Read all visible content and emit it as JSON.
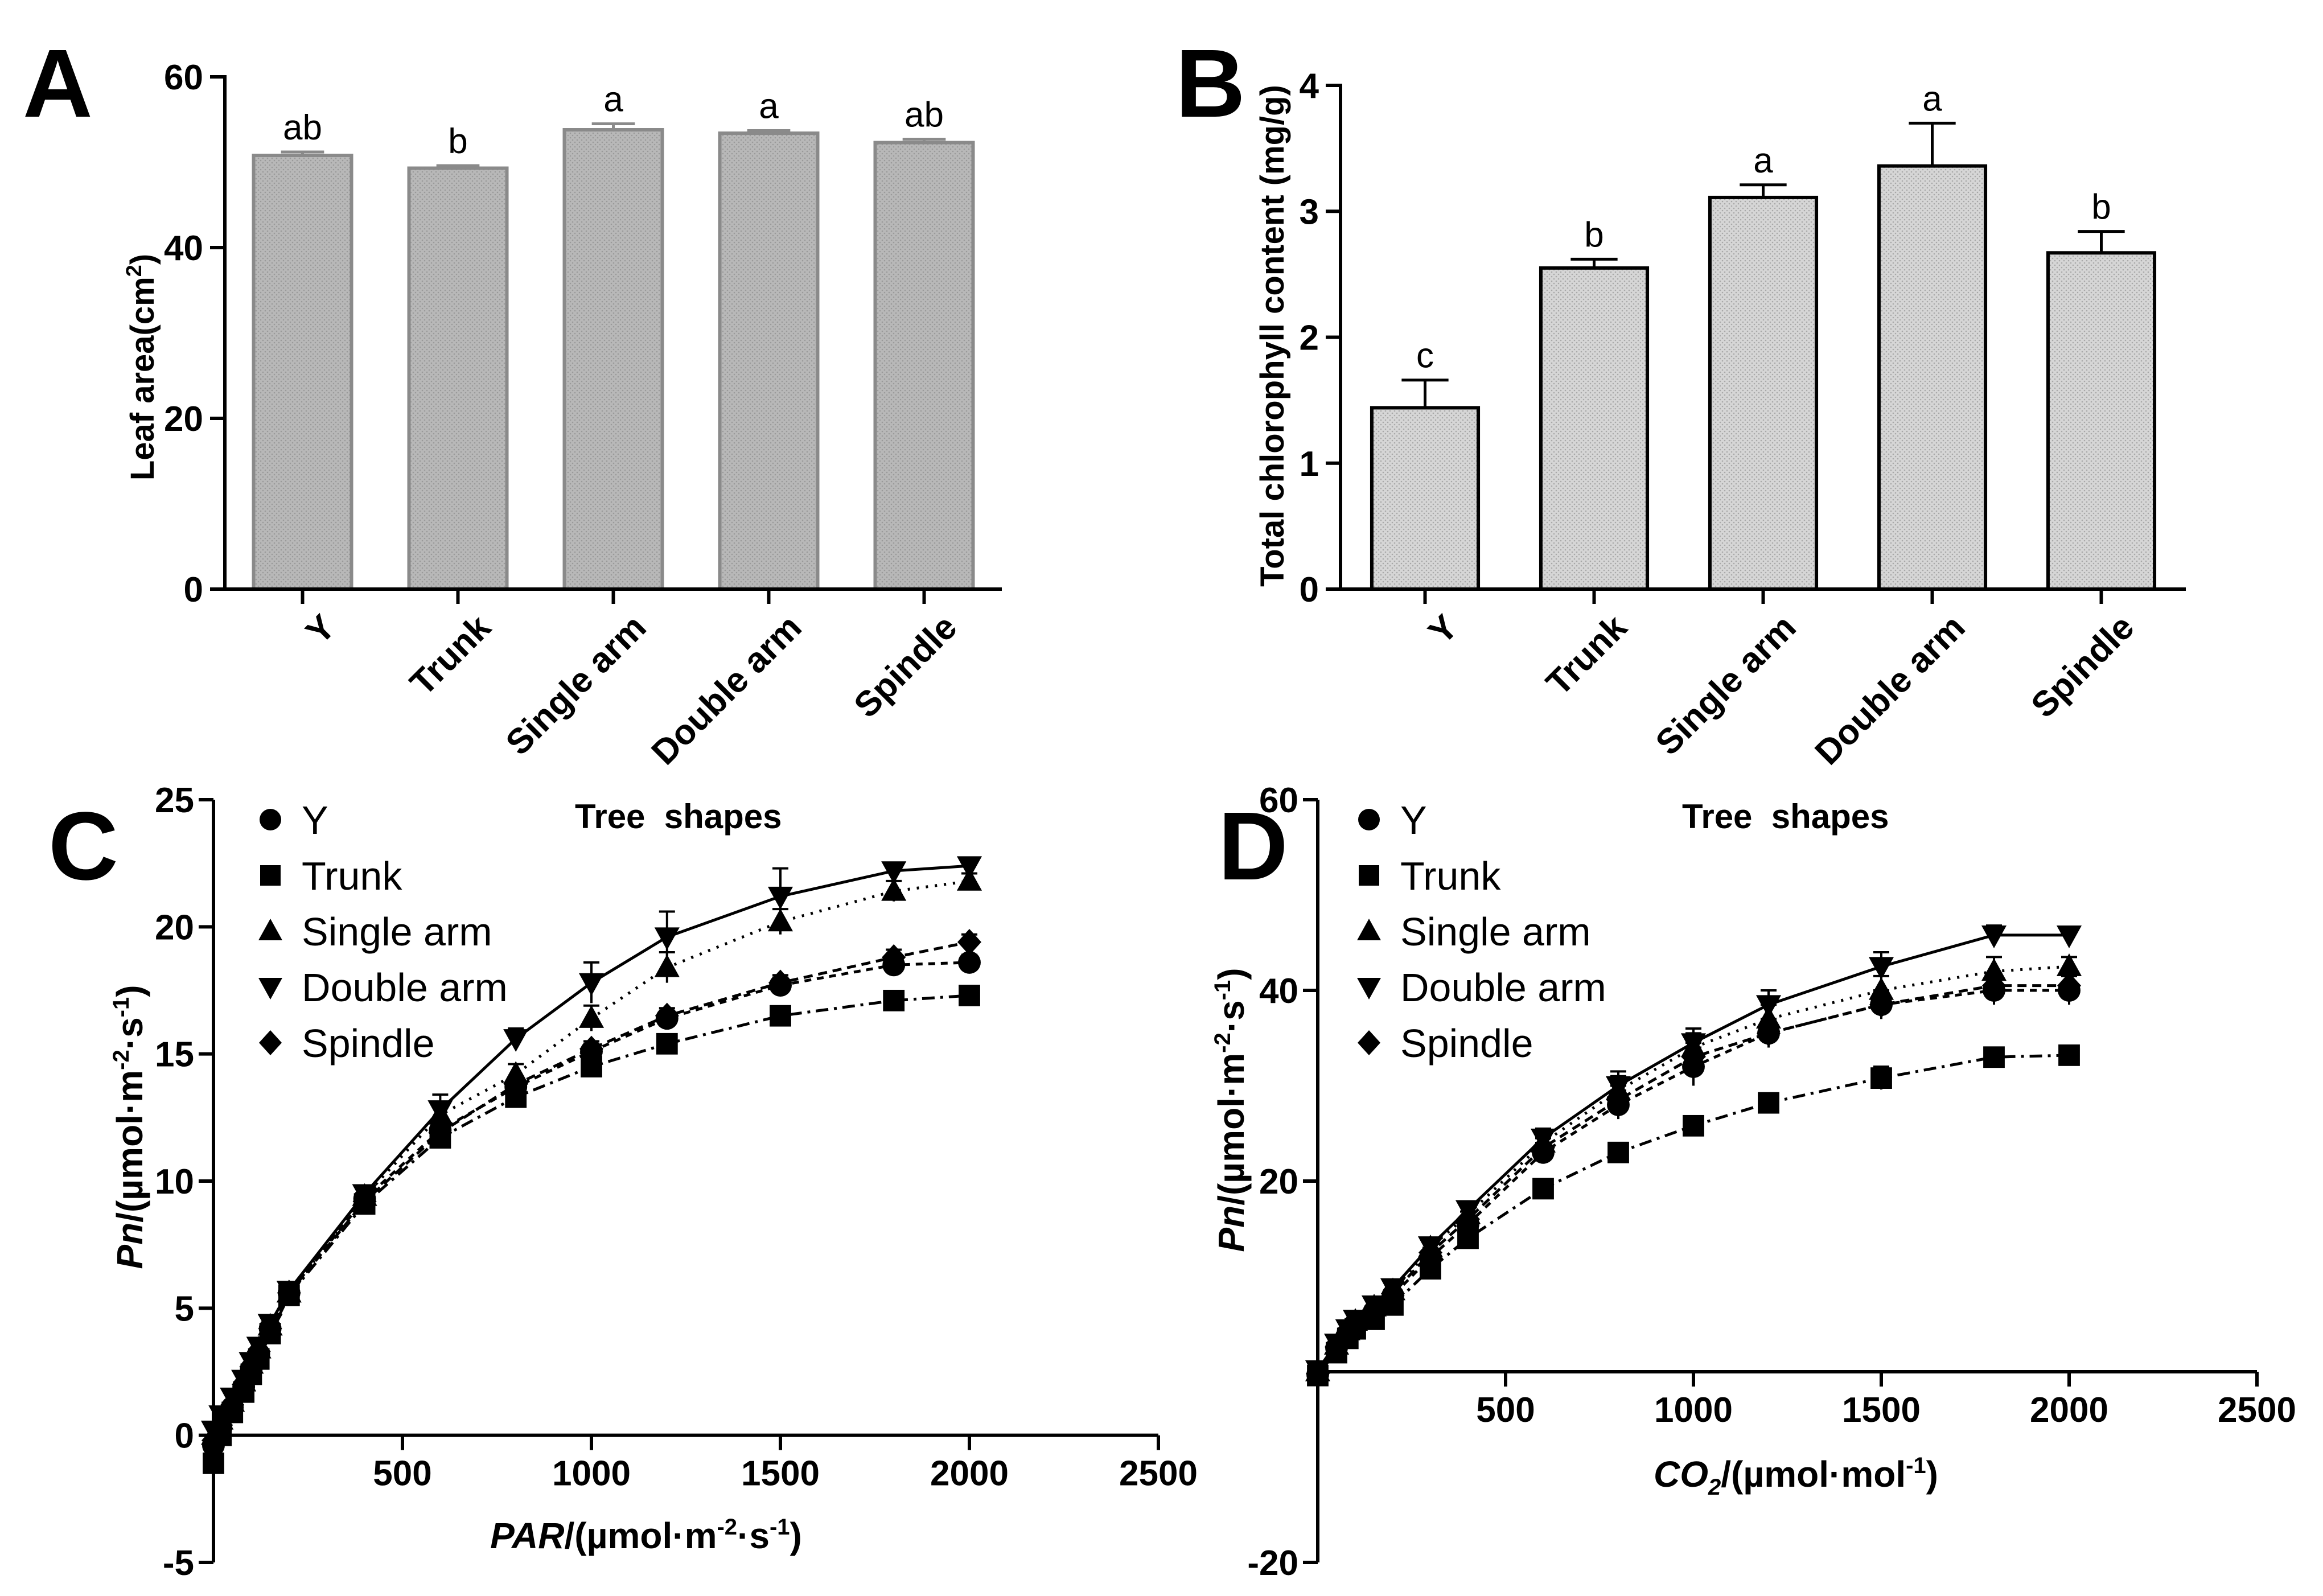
{
  "panels": {
    "A": "A",
    "B": "B",
    "C": "C",
    "D": "D"
  },
  "chart_data": [
    {
      "id": "A",
      "type": "bar",
      "title": "",
      "xlabel": "",
      "ylabel": "Leaf area(cm",
      "ylabel_sup": "2",
      "ylabel_end": ")",
      "ylim": [
        0,
        60
      ],
      "yticks": [
        0,
        20,
        40,
        60
      ],
      "categories": [
        "Y",
        "Trunk",
        "Single arm",
        "Double arm",
        "Spindle"
      ],
      "values": [
        50.8,
        49.3,
        53.8,
        53.4,
        52.3
      ],
      "errors": [
        0.4,
        0.3,
        0.7,
        0.3,
        0.4
      ],
      "significance": [
        "ab",
        "b",
        "a",
        "a",
        "ab"
      ],
      "colors": {
        "fill": "#b8b8b8",
        "stroke": "#8a8a8a"
      }
    },
    {
      "id": "B",
      "type": "bar",
      "title": "",
      "xlabel": "",
      "ylabel": "Total chlorophyll content (mg/g)",
      "ylim": [
        0,
        4
      ],
      "yticks": [
        0,
        1,
        2,
        3,
        4
      ],
      "categories": [
        "Y",
        "Trunk",
        "Single arm",
        "Double arm",
        "Spindle"
      ],
      "values": [
        1.44,
        2.55,
        3.11,
        3.36,
        2.67
      ],
      "errors": [
        0.22,
        0.07,
        0.1,
        0.34,
        0.17
      ],
      "significance": [
        "c",
        "b",
        "a",
        "a",
        "b"
      ],
      "colors": {
        "fill": "#d6d6d6",
        "stroke": "#000000"
      }
    },
    {
      "id": "C",
      "type": "line",
      "legend_title": "Tree  shapes",
      "legend_position": "top-left",
      "xlabel_italic": "PAR",
      "xlabel_rest": "/(µmol·m",
      "xlabel_sup1": "-2",
      "xlabel_mid": "·s",
      "xlabel_sup2": "-1",
      "xlabel_end": ")",
      "ylabel_italic": "Pn",
      "ylabel_rest": "/(µmol·m",
      "ylabel_sup1": "-2",
      "ylabel_mid": "·s",
      "ylabel_sup2": "-1",
      "ylabel_end": ")",
      "xlim": [
        0,
        2500
      ],
      "ylim": [
        -5,
        25
      ],
      "xticks": [
        500,
        1000,
        1500,
        2000,
        2500
      ],
      "yticks": [
        -5,
        0,
        5,
        10,
        15,
        20,
        25
      ],
      "x": [
        0,
        20,
        50,
        80,
        100,
        120,
        150,
        200,
        400,
        600,
        800,
        1000,
        1200,
        1500,
        1800,
        2000
      ],
      "series": [
        {
          "name": "Y",
          "marker": "circle",
          "dash": "12,10",
          "values": [
            -0.4,
            0.3,
            1.1,
            1.9,
            2.6,
            3.2,
            4.2,
            5.6,
            9.3,
            12.0,
            13.7,
            15.1,
            16.4,
            17.7,
            18.5,
            18.6
          ],
          "errors": [
            0.1,
            0.1,
            0.1,
            0.1,
            0.1,
            0.1,
            0.1,
            0.1,
            0.2,
            0.3,
            0.3,
            0.3,
            0.3,
            0.3,
            0.3,
            0.3
          ]
        },
        {
          "name": "Trunk",
          "marker": "square",
          "dash": "22,10,5,10",
          "values": [
            -1.1,
            0.0,
            0.9,
            1.7,
            2.4,
            3.0,
            4.0,
            5.5,
            9.1,
            11.7,
            13.3,
            14.5,
            15.4,
            16.5,
            17.1,
            17.3
          ],
          "errors": [
            0.1,
            0.1,
            0.1,
            0.1,
            0.1,
            0.1,
            0.1,
            0.1,
            0.2,
            0.3,
            0.3,
            0.3,
            0.3,
            0.3,
            0.3,
            0.3
          ]
        },
        {
          "name": "Single arm",
          "marker": "triangle-up",
          "dash": "4,12",
          "values": [
            0.0,
            0.6,
            1.3,
            2.1,
            2.8,
            3.4,
            4.3,
            5.6,
            9.4,
            12.6,
            14.2,
            16.4,
            18.4,
            20.2,
            21.4,
            21.8
          ],
          "errors": [
            0.1,
            0.1,
            0.1,
            0.1,
            0.1,
            0.1,
            0.1,
            0.1,
            0.2,
            0.4,
            0.4,
            0.5,
            0.6,
            0.5,
            0.4,
            0.3
          ]
        },
        {
          "name": "Double arm",
          "marker": "triangle-down",
          "dash": "",
          "values": [
            0.2,
            0.8,
            1.5,
            2.2,
            2.9,
            3.5,
            4.4,
            5.7,
            9.5,
            12.8,
            15.6,
            17.8,
            19.6,
            21.2,
            22.2,
            22.4
          ],
          "errors": [
            0.1,
            0.1,
            0.1,
            0.1,
            0.1,
            0.1,
            0.1,
            0.1,
            0.2,
            0.6,
            0.4,
            0.8,
            1.0,
            1.1,
            0.3,
            0.3
          ]
        },
        {
          "name": "Spindle",
          "marker": "diamond",
          "dash": "16,10",
          "values": [
            -0.2,
            0.4,
            1.2,
            2.0,
            2.7,
            3.3,
            4.2,
            5.6,
            9.2,
            11.9,
            13.8,
            15.2,
            16.5,
            17.8,
            18.8,
            19.4
          ],
          "errors": [
            0.1,
            0.1,
            0.1,
            0.1,
            0.1,
            0.1,
            0.1,
            0.1,
            0.2,
            0.3,
            0.3,
            0.3,
            0.3,
            0.3,
            0.3,
            0.3
          ]
        }
      ]
    },
    {
      "id": "D",
      "type": "line",
      "legend_title": "Tree  shapes",
      "legend_position": "top-left",
      "xlabel_italic": "CO",
      "xlabel_sub": "2",
      "xlabel_rest": "/(µmol·mol",
      "xlabel_sup1": "-1",
      "xlabel_end": ")",
      "ylabel_italic": "Pn",
      "ylabel_rest": "/(µmol·m",
      "ylabel_sup1": "-2",
      "ylabel_mid": "·s",
      "ylabel_sup2": "-1",
      "ylabel_end": ")",
      "xlim": [
        0,
        2500
      ],
      "ylim": [
        -20,
        60
      ],
      "xticks": [
        500,
        1000,
        1500,
        2000,
        2500
      ],
      "yticks": [
        -20,
        20,
        40,
        60
      ],
      "x": [
        0,
        50,
        80,
        100,
        150,
        200,
        300,
        400,
        600,
        800,
        1000,
        1200,
        1500,
        1800,
        2000
      ],
      "series": [
        {
          "name": "Y",
          "marker": "circle",
          "dash": "12,10",
          "values": [
            -0.3,
            2.5,
            4.0,
            5.0,
            6.3,
            8.0,
            12.0,
            15.5,
            23.0,
            28.0,
            32.0,
            35.5,
            38.5,
            40.0,
            40.0
          ],
          "errors": [
            0.2,
            0.2,
            0.2,
            0.2,
            0.2,
            0.3,
            0.5,
            0.8,
            1.0,
            1.5,
            2.0,
            1.5,
            1.5,
            1.5,
            1.5
          ]
        },
        {
          "name": "Trunk",
          "marker": "square",
          "dash": "22,10,5,10",
          "values": [
            -0.4,
            2.0,
            3.5,
            4.5,
            5.5,
            7.0,
            10.8,
            14.0,
            19.2,
            23.0,
            25.8,
            28.2,
            30.8,
            33.0,
            33.2
          ],
          "errors": [
            0.2,
            0.2,
            0.2,
            0.2,
            0.2,
            0.3,
            0.4,
            0.6,
            0.8,
            0.8,
            0.8,
            0.8,
            1.2,
            1.0,
            0.8
          ]
        },
        {
          "name": "Single arm",
          "marker": "triangle-up",
          "dash": "4,12",
          "values": [
            0.0,
            2.8,
            4.3,
            5.3,
            6.8,
            8.5,
            13.0,
            16.5,
            24.0,
            29.5,
            34.0,
            37.0,
            40.0,
            42.0,
            42.5
          ],
          "errors": [
            0.2,
            0.2,
            0.2,
            0.2,
            0.2,
            0.3,
            0.5,
            0.8,
            1.0,
            1.5,
            1.5,
            1.5,
            1.5,
            1.5,
            1.0
          ]
        },
        {
          "name": "Double arm",
          "marker": "triangle-down",
          "dash": "",
          "values": [
            0.2,
            3.0,
            4.5,
            5.5,
            7.0,
            8.8,
            13.2,
            17.0,
            24.5,
            30.0,
            34.5,
            38.5,
            42.5,
            45.8,
            45.8
          ],
          "errors": [
            0.2,
            0.2,
            0.2,
            0.2,
            0.2,
            0.3,
            0.5,
            0.8,
            1.0,
            1.5,
            1.5,
            1.5,
            1.5,
            1.0,
            0.5
          ]
        },
        {
          "name": "Spindle",
          "marker": "diamond",
          "dash": "16,10",
          "values": [
            -0.2,
            2.6,
            4.1,
            5.1,
            6.5,
            8.2,
            12.5,
            16.0,
            23.5,
            28.5,
            33.0,
            35.5,
            38.5,
            40.5,
            40.5
          ],
          "errors": [
            0.2,
            0.2,
            0.2,
            0.2,
            0.2,
            0.3,
            0.5,
            0.8,
            1.0,
            1.5,
            1.5,
            1.5,
            1.5,
            1.0,
            1.0
          ]
        }
      ]
    }
  ]
}
